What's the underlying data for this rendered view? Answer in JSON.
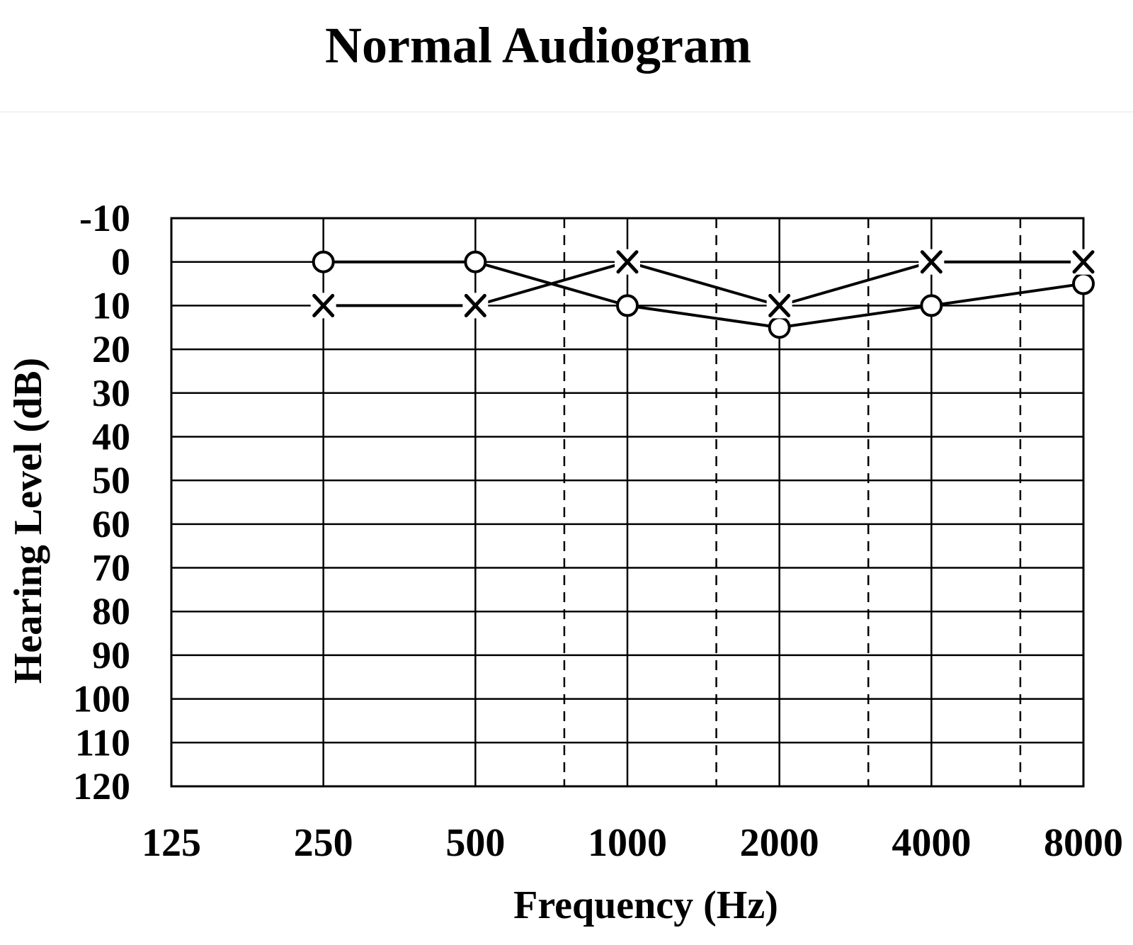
{
  "chart_data": {
    "type": "line",
    "title": "Normal Audiogram",
    "xlabel": "Frequency (Hz)",
    "ylabel": "Hearing Level (dB)",
    "x_scale": "log2",
    "y_inverted": true,
    "grid": true,
    "categories": [
      125,
      250,
      500,
      1000,
      2000,
      4000,
      8000
    ],
    "x_tick_labels": [
      "125",
      "250",
      "500",
      "1000",
      "2000",
      "4000",
      "8000"
    ],
    "y_ticks": [
      -10,
      0,
      10,
      20,
      30,
      40,
      50,
      60,
      70,
      80,
      90,
      100,
      110,
      120
    ],
    "y_tick_labels": [
      "-10",
      "0",
      "10",
      "20",
      "30",
      "40",
      "50",
      "60",
      "70",
      "80",
      "90",
      "100",
      "110",
      "120"
    ],
    "ylim": [
      -10,
      120
    ],
    "xlim": [
      125,
      8000
    ],
    "half_octave_dashed_lines": [
      750,
      1500,
      3000,
      6000
    ],
    "series": [
      {
        "marker": "O",
        "x": [
          250,
          500,
          1000,
          2000,
          4000,
          8000
        ],
        "values": [
          0,
          0,
          10,
          15,
          10,
          5
        ]
      },
      {
        "marker": "X",
        "x": [
          250,
          500,
          1000,
          2000,
          4000,
          8000
        ],
        "values": [
          10,
          10,
          0,
          10,
          0,
          0
        ]
      }
    ]
  },
  "colors": {
    "line": "#000000",
    "grid": "#000000",
    "background": "#ffffff"
  }
}
